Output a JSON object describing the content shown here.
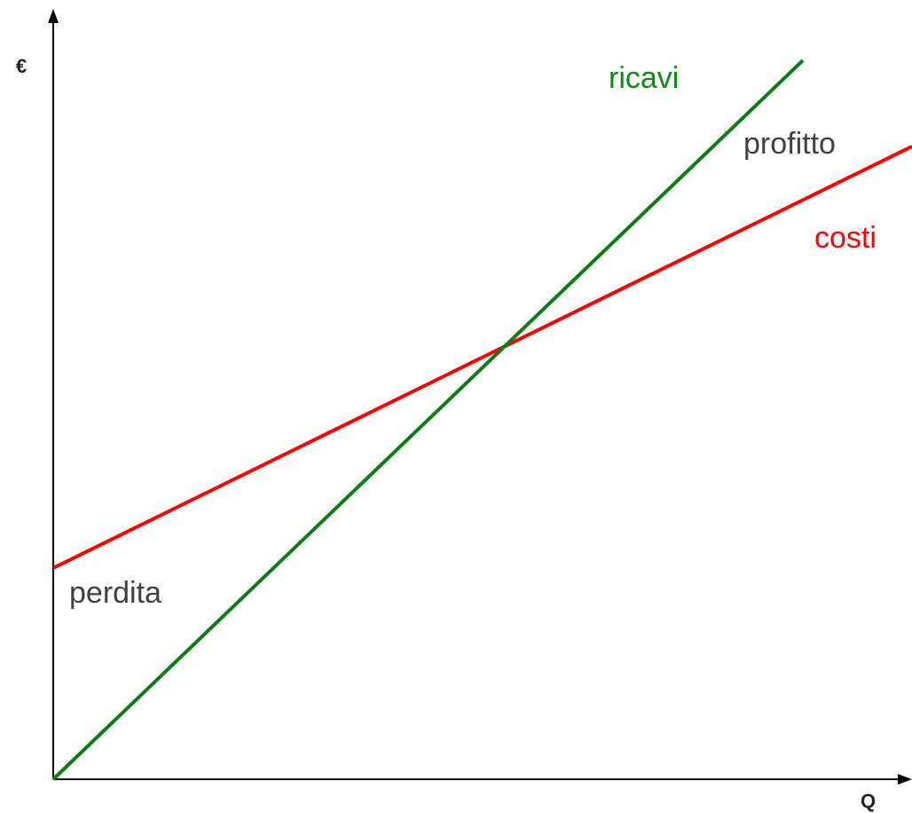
{
  "y_axis_label": "€",
  "x_axis_label": "Q",
  "lines": [
    {
      "label": "ricavi"
    },
    {
      "label": "costi"
    }
  ],
  "regions": [
    {
      "label": "profitto"
    },
    {
      "label": "perdita"
    }
  ]
}
